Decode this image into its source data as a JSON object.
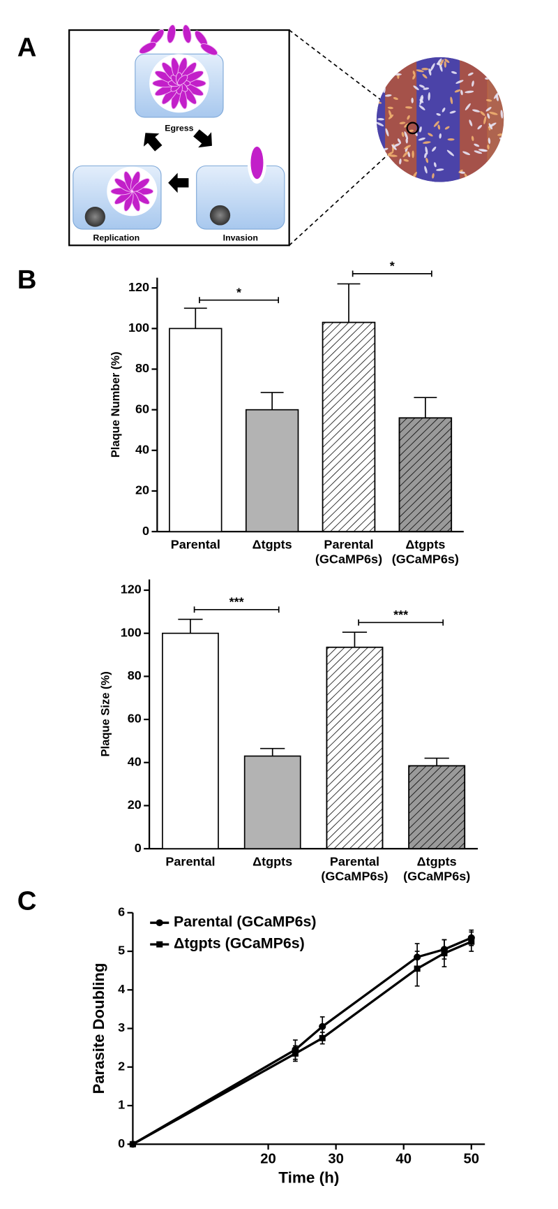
{
  "panel_labels": [
    "A",
    "B",
    "C"
  ],
  "diagram": {
    "stages": [
      "Egress",
      "Replication",
      "Invasion"
    ]
  },
  "chart_data": [
    {
      "type": "bar",
      "ylabel": "Plaque Number (%)",
      "categories": [
        "Parental",
        "Δtgpts",
        "Parental (GCaMP6s)",
        "Δtgpts (GCaMP6s)"
      ],
      "values": [
        100,
        60,
        103,
        56
      ],
      "errors": [
        10,
        8.5,
        19,
        10
      ],
      "colors": [
        "#ffffff",
        "#b3b3b3",
        "#ffffff",
        "#9a9a9a"
      ],
      "hatch": [
        false,
        false,
        true,
        true
      ],
      "ylim": [
        0,
        125
      ],
      "yticks": [
        0,
        20,
        40,
        60,
        80,
        100,
        120
      ],
      "annotations": [
        {
          "text": "*",
          "y": 114
        },
        {
          "text": "*",
          "y": 127
        }
      ]
    },
    {
      "type": "bar",
      "ylabel": "Plaque Size (%)",
      "categories": [
        "Parental",
        "Δtgpts",
        "Parental (GCaMP6s)",
        "Δtgpts (GCaMP6s)"
      ],
      "values": [
        100,
        43,
        93.5,
        38.5
      ],
      "errors": [
        6.5,
        3.5,
        7,
        3.5
      ],
      "colors": [
        "#ffffff",
        "#b3b3b3",
        "#ffffff",
        "#9a9a9a"
      ],
      "hatch": [
        false,
        false,
        true,
        true
      ],
      "ylim": [
        0,
        125
      ],
      "yticks": [
        0,
        20,
        40,
        60,
        80,
        100,
        120
      ],
      "annotations": [
        {
          "text": "***",
          "y": 111
        },
        {
          "text": "***",
          "y": 105
        }
      ]
    },
    {
      "type": "line",
      "xlabel": "Time (h)",
      "ylabel": "Parasite Doubling",
      "x": [
        0,
        24,
        28,
        42,
        46,
        50
      ],
      "series": [
        {
          "name": "Parental (GCaMP6s)",
          "color": "#000000",
          "marker": "circle",
          "values": [
            0,
            2.45,
            3.05,
            4.85,
            5.05,
            5.35
          ],
          "errors": [
            0,
            0.25,
            0.25,
            0.35,
            0.25,
            0.2
          ]
        },
        {
          "name": "Δtgpts (GCaMP6s)",
          "color": "#000000",
          "marker": "square",
          "values": [
            0,
            2.35,
            2.75,
            4.55,
            4.95,
            5.25
          ],
          "errors": [
            0,
            0.2,
            0.15,
            0.45,
            0.35,
            0.25
          ]
        }
      ],
      "xlim": [
        0,
        52
      ],
      "xticks": [
        20,
        30,
        40,
        50
      ],
      "ylim": [
        0,
        6
      ],
      "yticks": [
        0,
        1,
        2,
        3,
        4,
        5,
        6
      ],
      "legend": "upper-left"
    }
  ]
}
